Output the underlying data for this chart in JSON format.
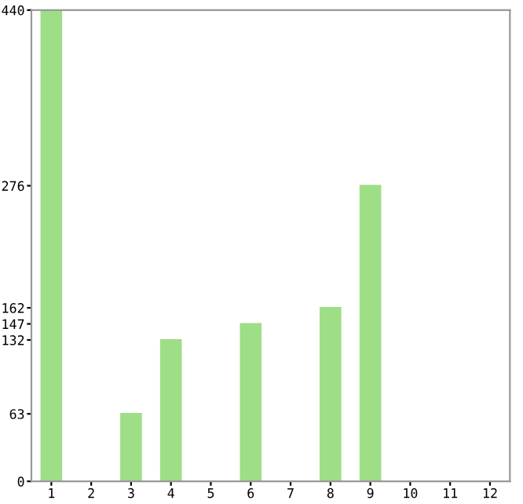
{
  "chart_data": {
    "type": "bar",
    "categories": [
      "1",
      "2",
      "3",
      "4",
      "5",
      "6",
      "7",
      "8",
      "9",
      "10",
      "11",
      "12"
    ],
    "values": [
      440,
      0,
      63,
      132,
      0,
      147,
      0,
      162,
      276,
      0,
      0,
      0
    ],
    "color": "#9ede87",
    "ylim": [
      0,
      440
    ],
    "yticks": [
      0,
      63,
      132,
      147,
      162,
      276,
      440
    ],
    "grid": false,
    "legend": false
  }
}
